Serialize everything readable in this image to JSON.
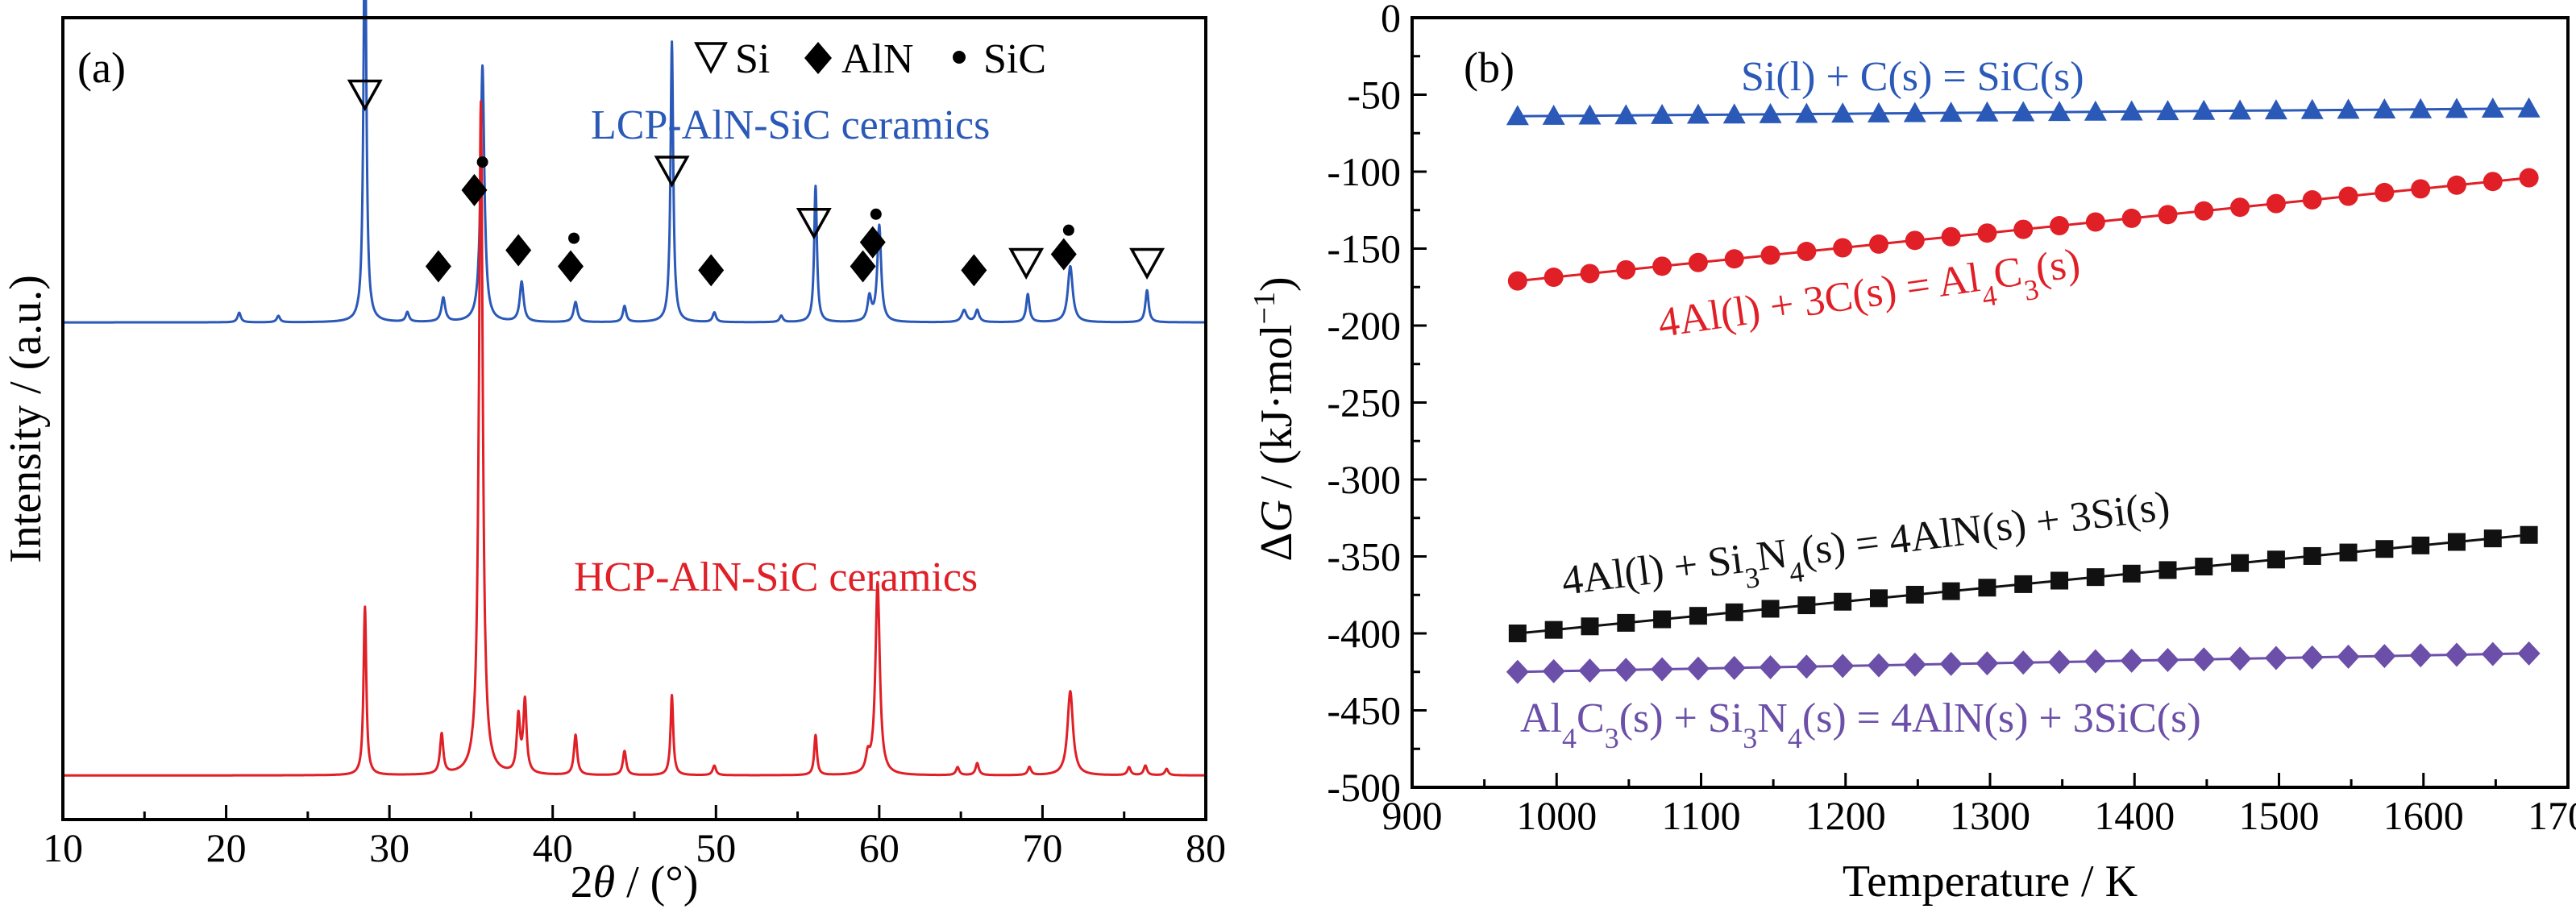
{
  "chart_data": [
    {
      "type": "line",
      "panel_label": "(a)",
      "xlabel_prefix": "2",
      "xlabel_theta": "θ",
      "xlabel_suffix": " / (°)",
      "ylabel": "Intensity / (a.u.)",
      "xlim": [
        10,
        80
      ],
      "x_ticks": [
        "10",
        "20",
        "30",
        "40",
        "50",
        "60",
        "70",
        "80"
      ],
      "legend": [
        {
          "symbol": "▽",
          "label": "Si"
        },
        {
          "symbol": "◆",
          "label": "AlN"
        },
        {
          "symbol": "●",
          "label": "SiC"
        }
      ],
      "series": [
        {
          "name": "LCP-AlN-SiC ceramics",
          "color": "#2b59b8",
          "baseline": 0.62,
          "peaks": [
            {
              "x": 20.8,
              "h": 0.012,
              "w": 0.12
            },
            {
              "x": 23.2,
              "h": 0.008,
              "w": 0.12
            },
            {
              "x": 28.5,
              "h": 0.535,
              "w": 0.1
            },
            {
              "x": 31.1,
              "h": 0.012,
              "w": 0.12
            },
            {
              "x": 33.3,
              "h": 0.03,
              "w": 0.14
            },
            {
              "x": 35.7,
              "h": 0.32,
              "w": 0.14
            },
            {
              "x": 38.1,
              "h": 0.05,
              "w": 0.14
            },
            {
              "x": 41.4,
              "h": 0.025,
              "w": 0.14
            },
            {
              "x": 44.4,
              "h": 0.02,
              "w": 0.12
            },
            {
              "x": 47.3,
              "h": 0.35,
              "w": 0.1
            },
            {
              "x": 49.9,
              "h": 0.012,
              "w": 0.12
            },
            {
              "x": 54.0,
              "h": 0.008,
              "w": 0.12
            },
            {
              "x": 56.1,
              "h": 0.17,
              "w": 0.1
            },
            {
              "x": 59.4,
              "h": 0.03,
              "w": 0.14
            },
            {
              "x": 60.0,
              "h": 0.12,
              "w": 0.14
            },
            {
              "x": 65.2,
              "h": 0.015,
              "w": 0.18
            },
            {
              "x": 66.0,
              "h": 0.015,
              "w": 0.14
            },
            {
              "x": 69.1,
              "h": 0.035,
              "w": 0.12
            },
            {
              "x": 71.7,
              "h": 0.07,
              "w": 0.18
            },
            {
              "x": 76.4,
              "h": 0.04,
              "w": 0.12
            }
          ],
          "markers": [
            {
              "x": 28.5,
              "symbol": "tri",
              "y": 0.905
            },
            {
              "x": 35.7,
              "symbol": "dot",
              "y": 0.82
            },
            {
              "x": 35.2,
              "symbol": "diamond",
              "y": 0.785
            },
            {
              "x": 47.3,
              "symbol": "tri",
              "y": 0.81
            },
            {
              "x": 33.0,
              "symbol": "diamond",
              "y": 0.69
            },
            {
              "x": 37.9,
              "symbol": "diamond",
              "y": 0.71
            },
            {
              "x": 41.3,
              "symbol": "dot",
              "y": 0.725
            },
            {
              "x": 41.1,
              "symbol": "diamond",
              "y": 0.69
            },
            {
              "x": 49.7,
              "symbol": "diamond",
              "y": 0.685
            },
            {
              "x": 56.0,
              "symbol": "tri",
              "y": 0.745
            },
            {
              "x": 59.0,
              "symbol": "diamond",
              "y": 0.69
            },
            {
              "x": 59.8,
              "symbol": "dot",
              "y": 0.755
            },
            {
              "x": 59.6,
              "symbol": "diamond",
              "y": 0.72
            },
            {
              "x": 65.8,
              "symbol": "diamond",
              "y": 0.685
            },
            {
              "x": 69.0,
              "symbol": "tri",
              "y": 0.695
            },
            {
              "x": 71.6,
              "symbol": "dot",
              "y": 0.735
            },
            {
              "x": 71.3,
              "symbol": "diamond",
              "y": 0.705
            },
            {
              "x": 76.4,
              "symbol": "tri",
              "y": 0.695
            }
          ]
        },
        {
          "name": "HCP-AlN-SiC ceramics",
          "color": "#e01f26",
          "baseline": 0.055,
          "peaks": [
            {
              "x": 28.5,
              "h": 0.21,
              "w": 0.1
            },
            {
              "x": 33.2,
              "h": 0.05,
              "w": 0.12
            },
            {
              "x": 35.6,
              "h": 0.84,
              "w": 0.14
            },
            {
              "x": 37.9,
              "h": 0.07,
              "w": 0.12
            },
            {
              "x": 38.3,
              "h": 0.09,
              "w": 0.12
            },
            {
              "x": 41.4,
              "h": 0.05,
              "w": 0.12
            },
            {
              "x": 44.4,
              "h": 0.03,
              "w": 0.12
            },
            {
              "x": 47.3,
              "h": 0.1,
              "w": 0.1
            },
            {
              "x": 49.9,
              "h": 0.012,
              "w": 0.12
            },
            {
              "x": 56.1,
              "h": 0.05,
              "w": 0.1
            },
            {
              "x": 59.3,
              "h": 0.02,
              "w": 0.14
            },
            {
              "x": 59.9,
              "h": 0.24,
              "w": 0.16
            },
            {
              "x": 64.8,
              "h": 0.01,
              "w": 0.12
            },
            {
              "x": 66.0,
              "h": 0.015,
              "w": 0.12
            },
            {
              "x": 69.2,
              "h": 0.01,
              "w": 0.12
            },
            {
              "x": 71.7,
              "h": 0.105,
              "w": 0.2
            },
            {
              "x": 75.3,
              "h": 0.01,
              "w": 0.12
            },
            {
              "x": 76.3,
              "h": 0.012,
              "w": 0.12
            },
            {
              "x": 77.6,
              "h": 0.008,
              "w": 0.12
            }
          ]
        }
      ]
    },
    {
      "type": "scatter",
      "panel_label": "(b)",
      "xlabel": "Temperature / K",
      "ylabel_prefix": "Δ",
      "ylabel_italic": "G",
      "ylabel_suffix": " / (kJ·mol",
      "ylabel_exp": "−1",
      "ylabel_close": ")",
      "xlim": [
        900,
        1700
      ],
      "ylim": [
        -500,
        0
      ],
      "x_ticks": [
        "900",
        "1000",
        "1100",
        "1200",
        "1300",
        "1400",
        "1500",
        "1600",
        "1700"
      ],
      "y_ticks": [
        "0",
        "-50",
        "-100",
        "-150",
        "-200",
        "-250",
        "-300",
        "-350",
        "-400",
        "-450",
        "-500"
      ],
      "x_start": 973,
      "x_step": 25,
      "n_points": 29,
      "series": [
        {
          "name": "Si(l) + C(s) = SiC(s)",
          "color": "#2b59b8",
          "marker": "triangle",
          "y_start": -64,
          "y_end": -59
        },
        {
          "name": "4Al(l) + 3C(s) = Al4C3(s)",
          "color": "#e01f26",
          "marker": "circle",
          "y_start": -171,
          "y_end": -104
        },
        {
          "name": "4Al(l) + Si3N4(s) = 4AlN(s) + 3Si(s)",
          "color": "#111111",
          "marker": "square",
          "y_start": -400,
          "y_end": -336
        },
        {
          "name": "Al4C3(s) + Si3N4(s) = 4AlN(s) + 3SiC(s)",
          "color": "#6b4fa8",
          "marker": "diamond",
          "y_start": -425,
          "y_end": -413
        }
      ]
    }
  ]
}
